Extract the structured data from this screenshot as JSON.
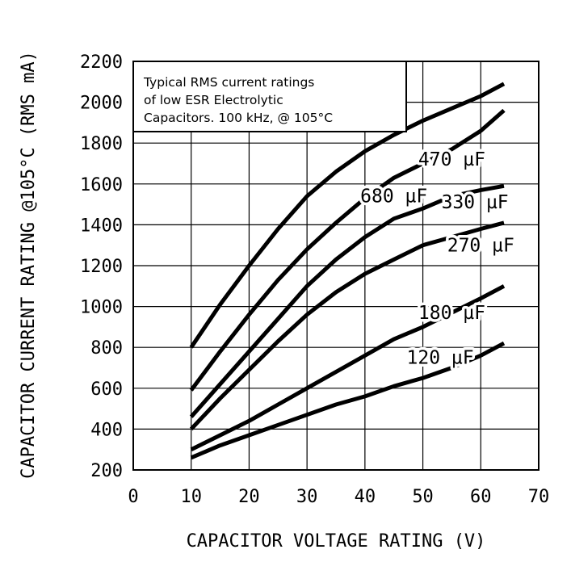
{
  "chart_data": {
    "type": "line",
    "xlabel": "CAPACITOR VOLTAGE RATING (V)",
    "ylabel": "CAPACITOR CURRENT RATING @105°C (RMS mA)",
    "xlim": [
      0,
      70
    ],
    "ylim": [
      200,
      2200
    ],
    "x_ticks": [
      0,
      10,
      20,
      30,
      40,
      50,
      60,
      70
    ],
    "y_ticks": [
      200,
      400,
      600,
      800,
      1000,
      1200,
      1400,
      1600,
      1800,
      2000,
      2200
    ],
    "grid": true,
    "annotation": [
      "Typical RMS current ratings",
      "of low ESR Electrolytic",
      "Capacitors. 100 kHz, @ 105°C"
    ],
    "series": [
      {
        "name": "680 µF",
        "points": [
          [
            10,
            800
          ],
          [
            15,
            1010
          ],
          [
            20,
            1200
          ],
          [
            25,
            1380
          ],
          [
            30,
            1540
          ],
          [
            35,
            1660
          ],
          [
            40,
            1760
          ],
          [
            45,
            1840
          ],
          [
            50,
            1910
          ],
          [
            55,
            1970
          ],
          [
            60,
            2030
          ],
          [
            64,
            2090
          ]
        ]
      },
      {
        "name": "470 µF",
        "points": [
          [
            10,
            590
          ],
          [
            15,
            780
          ],
          [
            20,
            960
          ],
          [
            25,
            1130
          ],
          [
            30,
            1280
          ],
          [
            35,
            1410
          ],
          [
            40,
            1530
          ],
          [
            45,
            1630
          ],
          [
            50,
            1700
          ],
          [
            55,
            1770
          ],
          [
            60,
            1860
          ],
          [
            64,
            1960
          ]
        ]
      },
      {
        "name": "330 µF",
        "points": [
          [
            10,
            460
          ],
          [
            15,
            620
          ],
          [
            20,
            780
          ],
          [
            25,
            940
          ],
          [
            30,
            1100
          ],
          [
            35,
            1230
          ],
          [
            40,
            1340
          ],
          [
            45,
            1430
          ],
          [
            50,
            1480
          ],
          [
            55,
            1540
          ],
          [
            60,
            1570
          ],
          [
            64,
            1590
          ]
        ]
      },
      {
        "name": "270 µF",
        "points": [
          [
            10,
            400
          ],
          [
            15,
            550
          ],
          [
            20,
            690
          ],
          [
            25,
            830
          ],
          [
            30,
            960
          ],
          [
            35,
            1070
          ],
          [
            40,
            1160
          ],
          [
            45,
            1230
          ],
          [
            50,
            1300
          ],
          [
            55,
            1340
          ],
          [
            60,
            1380
          ],
          [
            64,
            1410
          ]
        ]
      },
      {
        "name": "180 µF",
        "points": [
          [
            10,
            300
          ],
          [
            15,
            370
          ],
          [
            20,
            440
          ],
          [
            25,
            520
          ],
          [
            30,
            600
          ],
          [
            35,
            680
          ],
          [
            40,
            760
          ],
          [
            45,
            840
          ],
          [
            50,
            900
          ],
          [
            55,
            970
          ],
          [
            60,
            1040
          ],
          [
            64,
            1100
          ]
        ]
      },
      {
        "name": "120 µF",
        "points": [
          [
            10,
            260
          ],
          [
            15,
            320
          ],
          [
            20,
            370
          ],
          [
            25,
            420
          ],
          [
            30,
            470
          ],
          [
            35,
            520
          ],
          [
            40,
            560
          ],
          [
            45,
            610
          ],
          [
            50,
            650
          ],
          [
            55,
            700
          ],
          [
            60,
            760
          ],
          [
            64,
            820
          ]
        ]
      }
    ]
  }
}
